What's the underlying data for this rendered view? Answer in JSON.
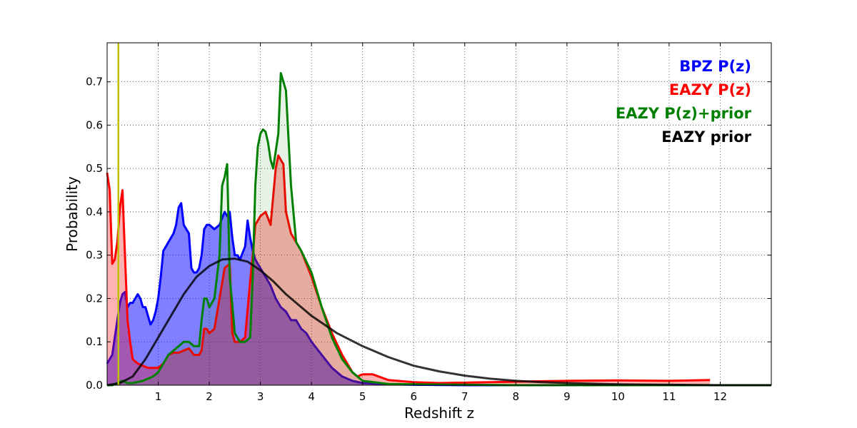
{
  "chart_data": {
    "type": "area",
    "xlabel": "Redshift z",
    "ylabel": "Probability",
    "xlim": [
      0,
      13
    ],
    "ylim": [
      0,
      0.79
    ],
    "xticks": [
      1,
      2,
      3,
      4,
      5,
      6,
      7,
      8,
      9,
      10,
      11,
      12
    ],
    "yticks": [
      0.0,
      0.1,
      0.2,
      0.3,
      0.4,
      0.5,
      0.6,
      0.7
    ],
    "ytick_labels": [
      "0.0",
      "0.1",
      "0.2",
      "0.3",
      "0.4",
      "0.5",
      "0.6",
      "0.7"
    ],
    "grid": true,
    "legend_position": "top-right",
    "vertical_line": {
      "x": 0.22,
      "color": "#bfbf00"
    },
    "series": [
      {
        "name": "BPZ P(z)",
        "color": "#0000ff",
        "fill": true,
        "fill_opacity": 0.5,
        "x": [
          0,
          0.05,
          0.1,
          0.15,
          0.2,
          0.25,
          0.3,
          0.35,
          0.4,
          0.45,
          0.5,
          0.55,
          0.6,
          0.65,
          0.7,
          0.75,
          0.8,
          0.85,
          0.9,
          0.95,
          1.0,
          1.05,
          1.1,
          1.15,
          1.2,
          1.25,
          1.3,
          1.35,
          1.4,
          1.45,
          1.5,
          1.55,
          1.6,
          1.65,
          1.7,
          1.75,
          1.8,
          1.85,
          1.9,
          1.95,
          2.0,
          2.1,
          2.2,
          2.3,
          2.35,
          2.4,
          2.45,
          2.5,
          2.55,
          2.6,
          2.7,
          2.75,
          2.8,
          2.85,
          2.9,
          2.95,
          3.0,
          3.1,
          3.2,
          3.3,
          3.4,
          3.5,
          3.6,
          3.7,
          3.8,
          3.9,
          4.0,
          4.2,
          4.4,
          4.6,
          4.8,
          5.0,
          5.5,
          6.0,
          7.0,
          13.0
        ],
        "y": [
          0.05,
          0.06,
          0.07,
          0.11,
          0.15,
          0.19,
          0.21,
          0.215,
          0.18,
          0.19,
          0.19,
          0.2,
          0.21,
          0.2,
          0.18,
          0.18,
          0.16,
          0.14,
          0.15,
          0.17,
          0.2,
          0.25,
          0.31,
          0.32,
          0.33,
          0.34,
          0.35,
          0.37,
          0.41,
          0.42,
          0.37,
          0.36,
          0.35,
          0.27,
          0.26,
          0.26,
          0.27,
          0.3,
          0.36,
          0.37,
          0.37,
          0.36,
          0.37,
          0.4,
          0.39,
          0.4,
          0.34,
          0.3,
          0.3,
          0.29,
          0.32,
          0.38,
          0.34,
          0.31,
          0.29,
          0.28,
          0.27,
          0.25,
          0.23,
          0.2,
          0.18,
          0.17,
          0.15,
          0.15,
          0.13,
          0.12,
          0.1,
          0.07,
          0.04,
          0.02,
          0.01,
          0.005,
          0.002,
          0.001,
          0.0,
          0.0
        ]
      },
      {
        "name": "EAZY P(z)",
        "color": "#ff0000",
        "fill": true,
        "fill_opacity": 0.3,
        "x": [
          0,
          0.05,
          0.1,
          0.15,
          0.2,
          0.25,
          0.3,
          0.35,
          0.4,
          0.45,
          0.5,
          0.6,
          0.8,
          1.0,
          1.1,
          1.2,
          1.3,
          1.4,
          1.5,
          1.6,
          1.7,
          1.8,
          1.85,
          1.9,
          1.95,
          2.0,
          2.1,
          2.2,
          2.3,
          2.4,
          2.45,
          2.5,
          2.6,
          2.7,
          2.8,
          2.85,
          2.9,
          3.0,
          3.1,
          3.2,
          3.3,
          3.35,
          3.4,
          3.45,
          3.5,
          3.6,
          3.7,
          3.8,
          3.9,
          4.0,
          4.2,
          4.4,
          4.6,
          4.8,
          4.9,
          5.0,
          5.2,
          5.5,
          6.0,
          6.5,
          7.0,
          8.0,
          9.0,
          10.0,
          11.0,
          11.8
        ],
        "y": [
          0.49,
          0.45,
          0.28,
          0.29,
          0.33,
          0.41,
          0.45,
          0.3,
          0.15,
          0.1,
          0.06,
          0.05,
          0.04,
          0.04,
          0.05,
          0.07,
          0.075,
          0.075,
          0.08,
          0.085,
          0.07,
          0.07,
          0.08,
          0.13,
          0.13,
          0.12,
          0.13,
          0.2,
          0.27,
          0.28,
          0.12,
          0.1,
          0.1,
          0.11,
          0.24,
          0.3,
          0.37,
          0.39,
          0.4,
          0.37,
          0.5,
          0.53,
          0.52,
          0.51,
          0.4,
          0.35,
          0.33,
          0.31,
          0.28,
          0.25,
          0.18,
          0.12,
          0.07,
          0.03,
          0.02,
          0.025,
          0.025,
          0.012,
          0.007,
          0.005,
          0.006,
          0.008,
          0.01,
          0.011,
          0.01,
          0.012
        ]
      },
      {
        "name": "EAZY P(z)+prior",
        "color": "#008000",
        "fill": true,
        "fill_opacity": 0.1,
        "x": [
          0,
          0.1,
          0.2,
          0.3,
          0.4,
          0.5,
          0.7,
          0.9,
          1.0,
          1.1,
          1.2,
          1.3,
          1.4,
          1.5,
          1.6,
          1.7,
          1.8,
          1.85,
          1.9,
          1.95,
          2.0,
          2.05,
          2.1,
          2.2,
          2.25,
          2.3,
          2.35,
          2.4,
          2.5,
          2.6,
          2.7,
          2.8,
          2.85,
          2.9,
          2.95,
          3.0,
          3.05,
          3.1,
          3.15,
          3.2,
          3.25,
          3.3,
          3.35,
          3.4,
          3.5,
          3.6,
          3.7,
          3.8,
          4.0,
          4.2,
          4.4,
          4.6,
          4.8,
          5.0,
          5.5,
          6.0,
          7.0,
          8.0,
          9.0,
          13.0
        ],
        "y": [
          0.0,
          0.0,
          0.005,
          0.01,
          0.005,
          0.005,
          0.01,
          0.02,
          0.03,
          0.05,
          0.07,
          0.08,
          0.09,
          0.1,
          0.1,
          0.09,
          0.09,
          0.15,
          0.2,
          0.2,
          0.18,
          0.19,
          0.2,
          0.3,
          0.46,
          0.48,
          0.51,
          0.25,
          0.12,
          0.1,
          0.1,
          0.11,
          0.25,
          0.46,
          0.55,
          0.58,
          0.59,
          0.585,
          0.56,
          0.52,
          0.5,
          0.54,
          0.58,
          0.72,
          0.68,
          0.46,
          0.33,
          0.31,
          0.26,
          0.18,
          0.11,
          0.06,
          0.03,
          0.01,
          0.003,
          0.002,
          0.001,
          0.0,
          0.0,
          0.0
        ]
      },
      {
        "name": "EAZY prior",
        "color": "#000000",
        "fill": true,
        "fill_opacity": 0.0,
        "x": [
          0,
          0.25,
          0.5,
          0.75,
          1.0,
          1.25,
          1.5,
          1.75,
          2.0,
          2.25,
          2.5,
          2.75,
          3.0,
          3.25,
          3.5,
          3.75,
          4.0,
          4.25,
          4.5,
          4.75,
          5.0,
          5.5,
          6.0,
          6.5,
          7.0,
          7.5,
          8.0,
          8.5,
          9.0,
          10.0,
          11.0,
          12.0,
          13.0
        ],
        "y": [
          0.0,
          0.005,
          0.02,
          0.06,
          0.11,
          0.16,
          0.21,
          0.25,
          0.275,
          0.29,
          0.292,
          0.285,
          0.265,
          0.24,
          0.21,
          0.185,
          0.16,
          0.14,
          0.12,
          0.105,
          0.09,
          0.065,
          0.045,
          0.032,
          0.022,
          0.015,
          0.01,
          0.007,
          0.005,
          0.002,
          0.001,
          0.0,
          0.0
        ]
      }
    ]
  }
}
